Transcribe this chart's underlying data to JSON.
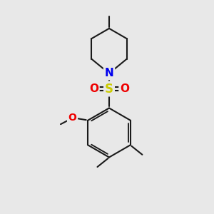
{
  "background_color": "#e8e8e8",
  "bond_color": "#1a1a1a",
  "N_color": "#0000ee",
  "O_color": "#ee0000",
  "S_color": "#cccc00",
  "font_size_atom": 11,
  "line_width": 1.5,
  "fig_size": [
    3.0,
    3.0
  ],
  "dpi": 100,
  "xlim": [
    0,
    10
  ],
  "ylim": [
    0,
    10
  ]
}
